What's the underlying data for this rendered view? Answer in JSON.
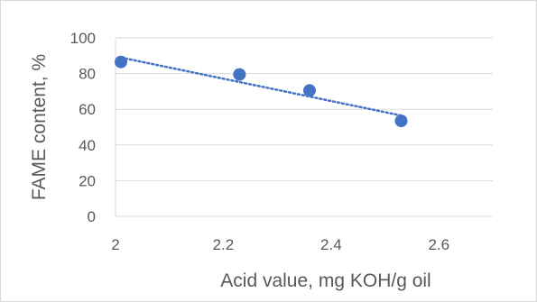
{
  "chart_data": {
    "type": "scatter",
    "title": "",
    "xlabel": "Acid value, mg KOH/g oil",
    "ylabel": "FAME content, %",
    "xlim": [
      2,
      2.7
    ],
    "ylim": [
      0,
      100
    ],
    "x_ticks": [
      "2",
      "2.2",
      "2.4",
      "2.6"
    ],
    "y_ticks": [
      "0",
      "20",
      "40",
      "60",
      "80",
      "100"
    ],
    "grid": "horizontal",
    "legend": "none",
    "series": [
      {
        "x": [
          2.01,
          2.23,
          2.36,
          2.53
        ],
        "y": [
          86.5,
          79.5,
          70.5,
          53.5
        ],
        "color": "#4472c4"
      }
    ],
    "trendline": {
      "type": "linear",
      "style": "dotted",
      "color": "#4472c4",
      "x_range": [
        2.01,
        2.53
      ],
      "y_range": [
        89,
        56.5
      ]
    }
  }
}
